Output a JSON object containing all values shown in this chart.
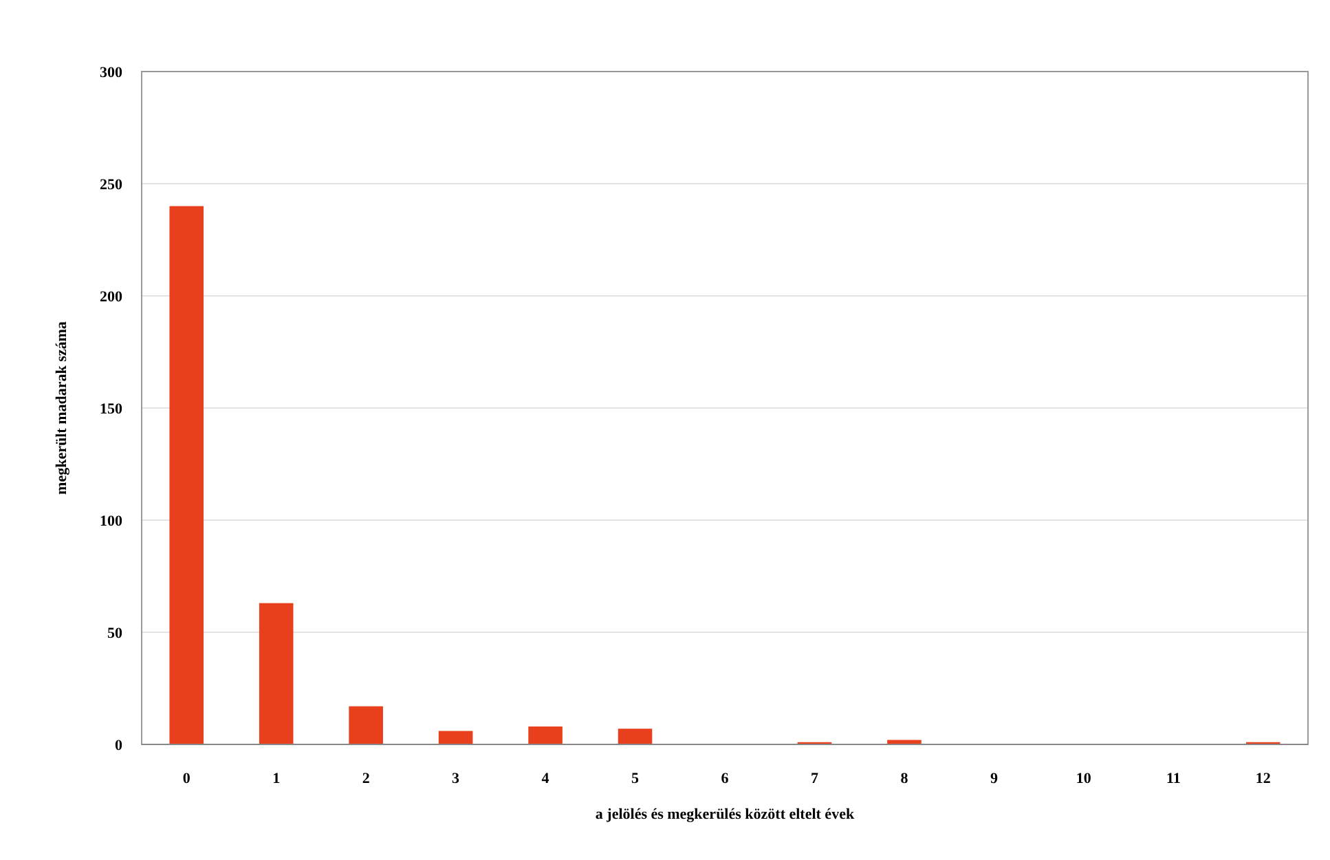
{
  "chart_data": {
    "type": "bar",
    "xlabel": "a jelölés és megkerülés között eltelt évek",
    "ylabel": "megkerült madarak száma",
    "x": [
      0,
      1,
      2,
      3,
      4,
      5,
      6,
      7,
      8,
      9,
      10,
      11,
      12
    ],
    "values": [
      240,
      63,
      17,
      6,
      8,
      7,
      0,
      1,
      2,
      0,
      0,
      0,
      1
    ],
    "color": "#e8401c",
    "xlim": [
      -0.5,
      12.5
    ],
    "xticks": [
      0,
      1,
      2,
      3,
      4,
      5,
      6,
      7,
      8,
      9,
      10,
      11,
      12
    ],
    "ylim": [
      0,
      300
    ],
    "yticks": [
      0,
      50,
      100,
      150,
      200,
      250,
      300
    ],
    "grid": "y"
  }
}
